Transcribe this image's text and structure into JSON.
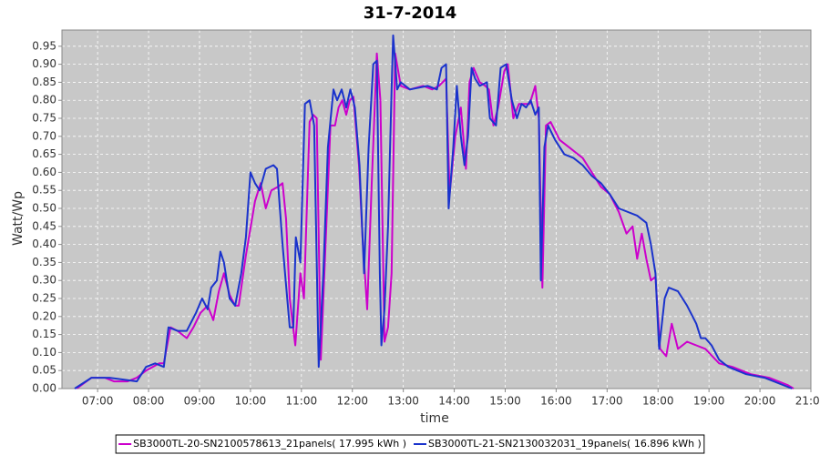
{
  "chart_data": {
    "type": "line",
    "title": "31-7-2014",
    "x_label": "time",
    "y_label": "Watt/Wp",
    "xlim": [
      6.3,
      21.0
    ],
    "ylim": [
      0,
      0.995
    ],
    "grid": true,
    "legend": "bottom",
    "xticks": [
      {
        "value": 7,
        "label": "07:00"
      },
      {
        "value": 8,
        "label": "08:00"
      },
      {
        "value": 9,
        "label": "09:00"
      },
      {
        "value": 10,
        "label": "10:00"
      },
      {
        "value": 11,
        "label": "11:00"
      },
      {
        "value": 12,
        "label": "12:00"
      },
      {
        "value": 13,
        "label": "13:00"
      },
      {
        "value": 14,
        "label": "14:00"
      },
      {
        "value": 15,
        "label": "15:00"
      },
      {
        "value": 16,
        "label": "16:00"
      },
      {
        "value": 17,
        "label": "17:00"
      },
      {
        "value": 18,
        "label": "18:00"
      },
      {
        "value": 19,
        "label": "19:00"
      },
      {
        "value": 20,
        "label": "20:00"
      },
      {
        "value": 21,
        "label": "21:00"
      }
    ],
    "yticks": [
      {
        "value": 0,
        "label": "0.00"
      },
      {
        "value": 0.05,
        "label": "0.05"
      },
      {
        "value": 0.1,
        "label": "0.10"
      },
      {
        "value": 0.15,
        "label": "0.15"
      },
      {
        "value": 0.2,
        "label": "0.20"
      },
      {
        "value": 0.25,
        "label": "0.25"
      },
      {
        "value": 0.3,
        "label": "0.30"
      },
      {
        "value": 0.35,
        "label": "0.35"
      },
      {
        "value": 0.4,
        "label": "0.40"
      },
      {
        "value": 0.45,
        "label": "0.45"
      },
      {
        "value": 0.5,
        "label": "0.50"
      },
      {
        "value": 0.55,
        "label": "0.55"
      },
      {
        "value": 0.6,
        "label": "0.60"
      },
      {
        "value": 0.65,
        "label": "0.65"
      },
      {
        "value": 0.7,
        "label": "0.70"
      },
      {
        "value": 0.75,
        "label": "0.75"
      },
      {
        "value": 0.8,
        "label": "0.80"
      },
      {
        "value": 0.85,
        "label": "0.85"
      },
      {
        "value": 0.9,
        "label": "0.90"
      },
      {
        "value": 0.95,
        "label": "0.95"
      }
    ],
    "series": [
      {
        "name": "SB3000TL-20-SN2100578613_21panels( 17.995 kWh )",
        "color": "#cc00cc",
        "x": [
          6.59,
          6.88,
          7.14,
          7.32,
          7.59,
          7.77,
          7.95,
          8.21,
          8.3,
          8.43,
          8.57,
          8.75,
          8.88,
          9.02,
          9.16,
          9.27,
          9.38,
          9.48,
          9.59,
          9.7,
          9.77,
          9.91,
          10.09,
          10.2,
          10.3,
          10.41,
          10.54,
          10.63,
          10.7,
          10.77,
          10.88,
          10.98,
          11.05,
          11.16,
          11.23,
          11.3,
          11.38,
          11.46,
          11.57,
          11.66,
          11.73,
          11.8,
          11.88,
          11.95,
          12.02,
          12.13,
          12.2,
          12.29,
          12.38,
          12.48,
          12.55,
          12.63,
          12.7,
          12.77,
          12.84,
          12.95,
          13.13,
          13.39,
          13.57,
          13.7,
          13.84,
          13.91,
          14.02,
          14.13,
          14.23,
          14.3,
          14.38,
          14.5,
          14.61,
          14.68,
          14.77,
          14.86,
          14.98,
          15.05,
          15.16,
          15.27,
          15.38,
          15.48,
          15.59,
          15.66,
          15.73,
          15.8,
          15.89,
          16.07,
          16.25,
          16.52,
          16.7,
          16.88,
          17.05,
          17.23,
          17.38,
          17.5,
          17.59,
          17.68,
          17.77,
          17.86,
          17.95,
          18.04,
          18.16,
          18.27,
          18.39,
          18.57,
          18.75,
          18.93,
          19.2,
          19.46,
          19.82,
          20.18,
          20.54,
          20.66
        ],
        "values": [
          0.0,
          0.03,
          0.03,
          0.02,
          0.02,
          0.03,
          0.05,
          0.07,
          0.07,
          0.17,
          0.16,
          0.14,
          0.17,
          0.21,
          0.23,
          0.19,
          0.27,
          0.32,
          0.26,
          0.23,
          0.23,
          0.37,
          0.52,
          0.57,
          0.5,
          0.55,
          0.56,
          0.57,
          0.47,
          0.25,
          0.12,
          0.32,
          0.25,
          0.74,
          0.76,
          0.75,
          0.08,
          0.35,
          0.73,
          0.73,
          0.78,
          0.8,
          0.76,
          0.8,
          0.81,
          0.62,
          0.42,
          0.22,
          0.57,
          0.93,
          0.8,
          0.13,
          0.17,
          0.32,
          0.93,
          0.84,
          0.83,
          0.84,
          0.83,
          0.84,
          0.86,
          0.54,
          0.7,
          0.78,
          0.61,
          0.85,
          0.89,
          0.85,
          0.84,
          0.83,
          0.73,
          0.78,
          0.88,
          0.9,
          0.75,
          0.79,
          0.79,
          0.79,
          0.84,
          0.75,
          0.28,
          0.73,
          0.74,
          0.69,
          0.67,
          0.64,
          0.6,
          0.56,
          0.54,
          0.49,
          0.43,
          0.45,
          0.36,
          0.43,
          0.36,
          0.3,
          0.31,
          0.11,
          0.09,
          0.18,
          0.11,
          0.13,
          0.12,
          0.11,
          0.07,
          0.06,
          0.04,
          0.03,
          0.01,
          0.0
        ]
      },
      {
        "name": "SB3000TL-21-SN2130032031_19panels( 16.896 kWh )",
        "color": "#1a33cc",
        "x": [
          6.55,
          6.88,
          7.23,
          7.77,
          7.95,
          8.13,
          8.3,
          8.39,
          8.57,
          8.75,
          8.93,
          9.05,
          9.16,
          9.23,
          9.34,
          9.41,
          9.48,
          9.59,
          9.7,
          9.82,
          9.91,
          10.0,
          10.09,
          10.18,
          10.3,
          10.45,
          10.52,
          10.63,
          10.77,
          10.84,
          10.89,
          10.98,
          11.07,
          11.16,
          11.25,
          11.34,
          11.43,
          11.52,
          11.63,
          11.7,
          11.79,
          11.88,
          11.96,
          12.05,
          12.14,
          12.23,
          12.32,
          12.41,
          12.48,
          12.54,
          12.57,
          12.63,
          12.7,
          12.77,
          12.8,
          12.88,
          12.95,
          13.13,
          13.48,
          13.66,
          13.75,
          13.84,
          13.89,
          13.98,
          14.05,
          14.13,
          14.2,
          14.27,
          14.34,
          14.41,
          14.5,
          14.64,
          14.7,
          14.82,
          14.91,
          15.02,
          15.13,
          15.23,
          15.32,
          15.41,
          15.5,
          15.59,
          15.66,
          15.7,
          15.77,
          15.84,
          15.98,
          16.16,
          16.34,
          16.52,
          16.7,
          16.88,
          17.05,
          17.23,
          17.41,
          17.59,
          17.77,
          17.86,
          17.95,
          18.02,
          18.13,
          18.21,
          18.39,
          18.57,
          18.75,
          18.84,
          18.93,
          19.05,
          19.2,
          19.38,
          19.73,
          20.09,
          20.45,
          20.63
        ],
        "values": [
          0.0,
          0.03,
          0.03,
          0.02,
          0.06,
          0.07,
          0.06,
          0.17,
          0.16,
          0.16,
          0.21,
          0.25,
          0.22,
          0.28,
          0.3,
          0.38,
          0.35,
          0.25,
          0.23,
          0.32,
          0.42,
          0.6,
          0.57,
          0.55,
          0.61,
          0.62,
          0.61,
          0.4,
          0.17,
          0.17,
          0.42,
          0.35,
          0.79,
          0.8,
          0.73,
          0.06,
          0.32,
          0.67,
          0.83,
          0.8,
          0.83,
          0.78,
          0.83,
          0.78,
          0.62,
          0.32,
          0.67,
          0.9,
          0.91,
          0.32,
          0.12,
          0.22,
          0.45,
          0.83,
          0.98,
          0.83,
          0.85,
          0.83,
          0.84,
          0.83,
          0.89,
          0.9,
          0.5,
          0.67,
          0.84,
          0.7,
          0.62,
          0.7,
          0.89,
          0.86,
          0.84,
          0.85,
          0.75,
          0.73,
          0.89,
          0.9,
          0.8,
          0.75,
          0.79,
          0.78,
          0.8,
          0.76,
          0.78,
          0.3,
          0.67,
          0.73,
          0.69,
          0.65,
          0.64,
          0.62,
          0.59,
          0.57,
          0.54,
          0.5,
          0.49,
          0.48,
          0.46,
          0.4,
          0.32,
          0.11,
          0.25,
          0.28,
          0.27,
          0.23,
          0.18,
          0.14,
          0.14,
          0.12,
          0.08,
          0.06,
          0.04,
          0.03,
          0.01,
          0.0
        ]
      }
    ]
  }
}
